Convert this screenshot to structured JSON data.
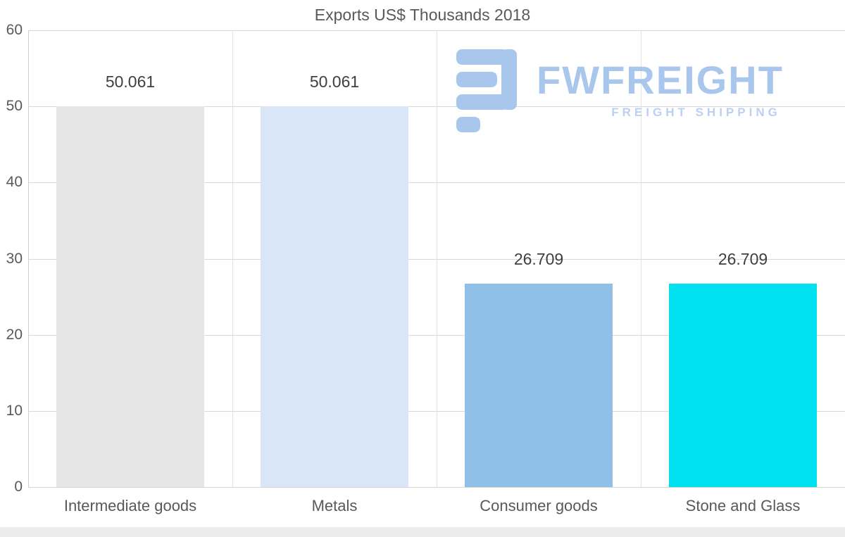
{
  "title": "Exports US$ Thousands 2018",
  "watermark": {
    "brand": "FWFREIGHT",
    "tagline": "FREIGHT SHIPPING",
    "color": "#a5c3ec"
  },
  "chart_data": {
    "type": "bar",
    "title": "Exports US$ Thousands 2018",
    "categories": [
      "Intermediate goods",
      "Metals",
      "Consumer goods",
      "Stone and Glass"
    ],
    "values": [
      50.061,
      50.061,
      26.709,
      26.709
    ],
    "data_labels": [
      "50.061",
      "50.061",
      "26.709",
      "26.709"
    ],
    "bar_colors": [
      "#e6e6e6",
      "#d8e6f8",
      "#90c0e8",
      "#00e0ee"
    ],
    "xlabel": "",
    "ylabel": "",
    "ylim": [
      0,
      60
    ],
    "yticks": [
      0,
      10,
      20,
      30,
      40,
      50,
      60
    ],
    "grid": true,
    "legend": "none"
  }
}
